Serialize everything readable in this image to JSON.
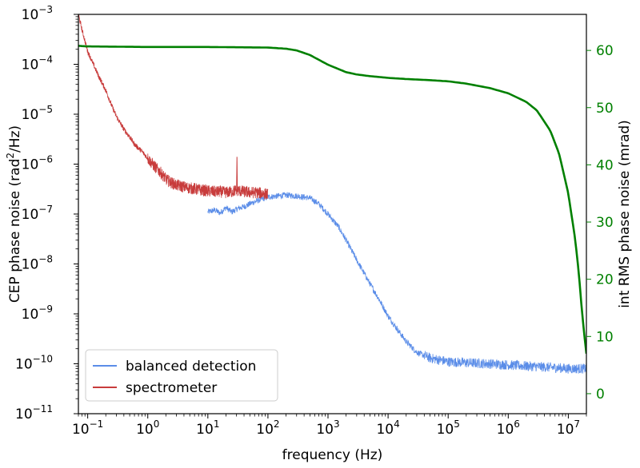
{
  "chart_data": {
    "type": "line",
    "xscale": "log",
    "xlim": [
      0.07,
      20000000
    ],
    "xlabel": "frequency (Hz)",
    "x_ticks": [
      {
        "value": 0.1,
        "base": "10",
        "exp": "−1"
      },
      {
        "value": 1,
        "base": "10",
        "exp": "0"
      },
      {
        "value": 10,
        "base": "10",
        "exp": "1"
      },
      {
        "value": 100,
        "base": "10",
        "exp": "2"
      },
      {
        "value": 1000,
        "base": "10",
        "exp": "3"
      },
      {
        "value": 10000,
        "base": "10",
        "exp": "4"
      },
      {
        "value": 100000,
        "base": "10",
        "exp": "5"
      },
      {
        "value": 1000000,
        "base": "10",
        "exp": "6"
      },
      {
        "value": 10000000,
        "base": "10",
        "exp": "7"
      }
    ],
    "yscale": "log",
    "ylim": [
      1e-11,
      0.001
    ],
    "ylabel": {
      "prefix": "CEP phase noise (rad",
      "sup": "2",
      "suffix": "/Hz)"
    },
    "y_ticks": [
      {
        "value": 0.001,
        "base": "10",
        "exp": "−3"
      },
      {
        "value": 0.0001,
        "base": "10",
        "exp": "−4"
      },
      {
        "value": 1e-05,
        "base": "10",
        "exp": "−5"
      },
      {
        "value": 1e-06,
        "base": "10",
        "exp": "−6"
      },
      {
        "value": 1e-07,
        "base": "10",
        "exp": "−7"
      },
      {
        "value": 1e-08,
        "base": "10",
        "exp": "−8"
      },
      {
        "value": 1e-09,
        "base": "10",
        "exp": "−9"
      },
      {
        "value": 1e-10,
        "base": "10",
        "exp": "−10"
      },
      {
        "value": 1e-11,
        "base": "10",
        "exp": "−11"
      }
    ],
    "y2lim": [
      -3.5,
      66.3
    ],
    "y2label": "int RMS phase noise (mrad)",
    "y2_ticks": [
      0,
      10,
      20,
      30,
      40,
      50,
      60
    ],
    "y2_color": "#008000",
    "legend": {
      "placement": "lower-left",
      "entries": [
        "balanced detection",
        "spectrometer"
      ]
    },
    "grid": false,
    "series": [
      {
        "name": "balanced detection",
        "axis": "left",
        "color": "#5b8de8",
        "x": [
          10,
          13,
          16,
          20,
          25,
          32,
          40,
          50,
          63,
          80,
          100,
          150,
          200,
          300,
          500,
          700,
          1000,
          1500,
          2000,
          3000,
          5000,
          7000,
          10000,
          15000,
          20000,
          30000,
          50000,
          70000,
          100000,
          200000,
          500000,
          1000000,
          2000000,
          5000000,
          10000000,
          20000000
        ],
        "y": [
          1.1e-07,
          1.2e-07,
          1.05e-07,
          1.35e-07,
          1.1e-07,
          1.3e-07,
          1.4e-07,
          1.6e-07,
          1.8e-07,
          2e-07,
          2.2e-07,
          2.3e-07,
          2.4e-07,
          2.3e-07,
          2.1e-07,
          1.6e-07,
          1e-07,
          5.5e-08,
          3e-08,
          1.2e-08,
          4e-09,
          2e-09,
          9e-10,
          4.5e-10,
          2.8e-10,
          1.7e-10,
          1.3e-10,
          1.2e-10,
          1.1e-10,
          1.05e-10,
          1e-10,
          9.5e-11,
          9e-11,
          8.5e-11,
          8e-11,
          8e-11
        ]
      },
      {
        "name": "spectrometer",
        "axis": "left",
        "color": "#c83c3c",
        "x": [
          0.07,
          0.08,
          0.1,
          0.12,
          0.15,
          0.2,
          0.25,
          0.3,
          0.4,
          0.5,
          0.6,
          0.8,
          1,
          1.3,
          1.6,
          2,
          2.5,
          3,
          4,
          5,
          6,
          8,
          10,
          13,
          16,
          20,
          25,
          30,
          40,
          50,
          63,
          80,
          100
        ],
        "y": [
          0.001,
          0.0005,
          0.00018,
          0.00011,
          6e-05,
          3e-05,
          1.5e-05,
          9e-06,
          5e-06,
          3.5e-06,
          2.5e-06,
          1.8e-06,
          1.3e-06,
          9e-07,
          7e-07,
          5e-07,
          4.2e-07,
          3.8e-07,
          3.5e-07,
          3.3e-07,
          3.2e-07,
          3e-07,
          2.9e-07,
          2.8e-07,
          2.8e-07,
          2.7e-07,
          2.8e-07,
          3e-07,
          2.8e-07,
          2.7e-07,
          2.7e-07,
          2.6e-07,
          2.5e-07
        ]
      },
      {
        "name": "int RMS phase noise",
        "axis": "right",
        "color": "#008000",
        "x": [
          0.07,
          0.1,
          1,
          10,
          100,
          200,
          300,
          500,
          1000,
          2000,
          3000,
          5000,
          10000,
          20000,
          50000,
          100000,
          200000,
          500000,
          1000000,
          2000000,
          3000000,
          5000000,
          7000000,
          10000000,
          13000000,
          15000000,
          17000000,
          19000000,
          20000000
        ],
        "y": [
          60.8,
          60.7,
          60.6,
          60.6,
          60.5,
          60.3,
          60.0,
          59.2,
          57.5,
          56.2,
          55.8,
          55.5,
          55.2,
          55.0,
          54.8,
          54.6,
          54.2,
          53.4,
          52.5,
          51.0,
          49.5,
          46.0,
          42.0,
          35.0,
          27.0,
          21.0,
          14.0,
          9.0,
          7.0
        ]
      }
    ]
  }
}
